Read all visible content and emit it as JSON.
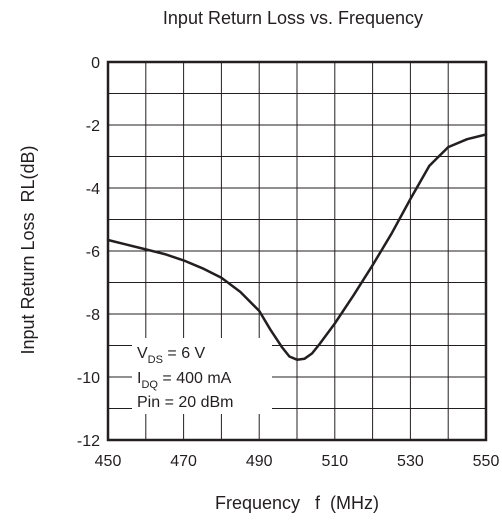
{
  "chart_data": {
    "type": "line",
    "title": "Input Return Loss vs. Frequency",
    "xlabel": "Frequency   f  (MHz)",
    "ylabel": "Input Return Loss  RL(dB)",
    "xlim": [
      450,
      550
    ],
    "ylim": [
      -12,
      0
    ],
    "x_ticks": [
      450,
      470,
      490,
      510,
      530,
      550
    ],
    "y_ticks": [
      0,
      -2,
      -4,
      -6,
      -8,
      -10,
      -12
    ],
    "x_minor_grid": [
      460,
      480,
      500,
      520,
      540
    ],
    "y_minor_grid": [
      -1,
      -3,
      -5,
      -7,
      -9,
      -11
    ],
    "grid": true,
    "series": [
      {
        "x": [
          450,
          455,
          460,
          465,
          470,
          475,
          480,
          485,
          490,
          493,
          496,
          498,
          500,
          502,
          504,
          506,
          510,
          515,
          520,
          525,
          530,
          535,
          540,
          545,
          550
        ],
        "y": [
          -5.65,
          -5.8,
          -5.95,
          -6.1,
          -6.3,
          -6.55,
          -6.85,
          -7.3,
          -7.9,
          -8.5,
          -9.05,
          -9.35,
          -9.45,
          -9.42,
          -9.25,
          -8.95,
          -8.3,
          -7.4,
          -6.45,
          -5.45,
          -4.35,
          -3.3,
          -2.7,
          -2.45,
          -2.3
        ],
        "color": "#231f20"
      }
    ],
    "annotation": {
      "vds_base": "V",
      "vds_sub": "DS",
      "vds_value": " = 6 V",
      "idq_base": "I",
      "idq_sub": "DQ",
      "idq_value": " = 400 mA",
      "pin": "Pin = 20 dBm"
    }
  }
}
